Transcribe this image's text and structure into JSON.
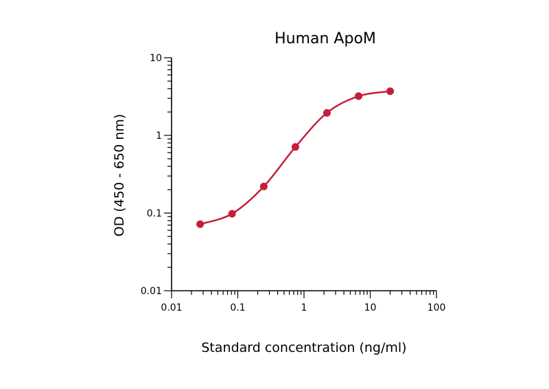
{
  "chart_data": {
    "type": "line",
    "title": "Human ApoM",
    "xlabel": "Standard concentration (ng/ml)",
    "ylabel": "OD (450 - 650 nm)",
    "x_scale": "log",
    "y_scale": "log",
    "xlim": [
      0.01,
      100
    ],
    "ylim": [
      0.01,
      10
    ],
    "x_ticks": [
      {
        "value": 0.01,
        "label": "0.01"
      },
      {
        "value": 0.1,
        "label": "0.1"
      },
      {
        "value": 1,
        "label": "1"
      },
      {
        "value": 10,
        "label": "10"
      },
      {
        "value": 100,
        "label": "100"
      }
    ],
    "y_ticks": [
      {
        "value": 0.01,
        "label": "0.01"
      },
      {
        "value": 0.1,
        "label": "0.1"
      },
      {
        "value": 1,
        "label": "1"
      },
      {
        "value": 10,
        "label": "10"
      }
    ],
    "grid": false,
    "legend": "none",
    "color": "#c41e3a",
    "series": [
      {
        "x": [
          0.027,
          0.082,
          0.247,
          0.741,
          2.22,
          6.67,
          20
        ],
        "y": [
          0.072,
          0.098,
          0.22,
          0.71,
          1.95,
          3.2,
          3.7
        ]
      }
    ]
  }
}
